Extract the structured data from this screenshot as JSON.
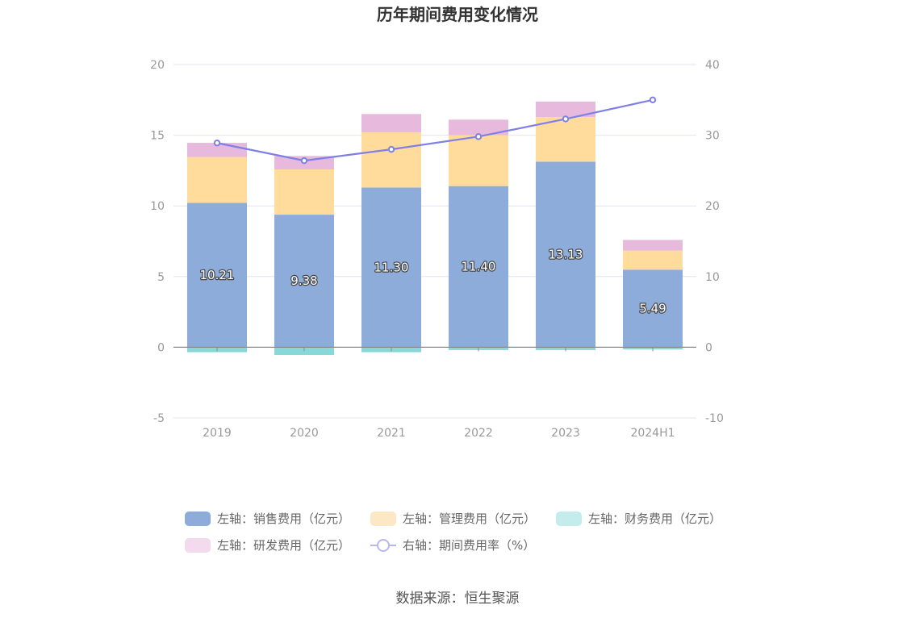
{
  "chart_data": {
    "type": "bar",
    "title": "历年期间费用变化情况",
    "categories": [
      "2019",
      "2020",
      "2021",
      "2022",
      "2023",
      "2024H1"
    ],
    "stacked": true,
    "left_axis": {
      "ylim": [
        -5,
        20
      ],
      "ticks": [
        -5,
        0,
        5,
        10,
        15,
        20
      ]
    },
    "right_axis": {
      "ylim": [
        -10,
        40
      ],
      "ticks": [
        -10,
        0,
        10,
        20,
        30,
        40
      ]
    },
    "series": [
      {
        "name": "左轴：销售费用（亿元）",
        "axis": "left",
        "kind": "bar",
        "color": "#8eacd9",
        "values": [
          10.21,
          9.38,
          11.3,
          11.4,
          13.13,
          5.49
        ],
        "labels": [
          "10.21",
          "9.38",
          "11.30",
          "11.40",
          "13.13",
          "5.49"
        ]
      },
      {
        "name": "左轴：管理费用（亿元）",
        "axis": "left",
        "kind": "bar",
        "color": "#ffdb9c",
        "values": [
          3.25,
          3.2,
          3.9,
          3.6,
          3.15,
          1.35
        ]
      },
      {
        "name": "左轴：财务费用（亿元）",
        "axis": "left",
        "kind": "bar",
        "color": "#88d8d8",
        "values": [
          -0.35,
          -0.55,
          -0.35,
          -0.2,
          -0.2,
          -0.15
        ]
      },
      {
        "name": "左轴：研发费用（亿元）",
        "axis": "left",
        "kind": "bar",
        "color": "#e7b9dc",
        "values": [
          1.0,
          0.95,
          1.3,
          1.1,
          1.1,
          0.75
        ]
      },
      {
        "name": "右轴：期间费用率（%）",
        "axis": "right",
        "kind": "line",
        "color": "#7f7fe8",
        "values": [
          28.9,
          26.4,
          28.0,
          29.8,
          32.3,
          35.0
        ]
      }
    ],
    "grid": true,
    "legend_position": "bottom"
  },
  "legend": [
    {
      "label": "左轴：销售费用（亿元）",
      "color": "#8eacd9",
      "style": "rect"
    },
    {
      "label": "左轴：管理费用（亿元）",
      "color": "#fde8c6",
      "style": "rect"
    },
    {
      "label": "左轴：财务费用（亿元）",
      "color": "#c4ecec",
      "style": "rect"
    },
    {
      "label": "左轴：研发费用（亿元）",
      "color": "#f3dbed",
      "style": "rect"
    },
    {
      "label": "右轴：期间费用率（%）",
      "color": "#b7b7f2",
      "style": "line"
    }
  ],
  "source": "数据来源：恒生聚源"
}
